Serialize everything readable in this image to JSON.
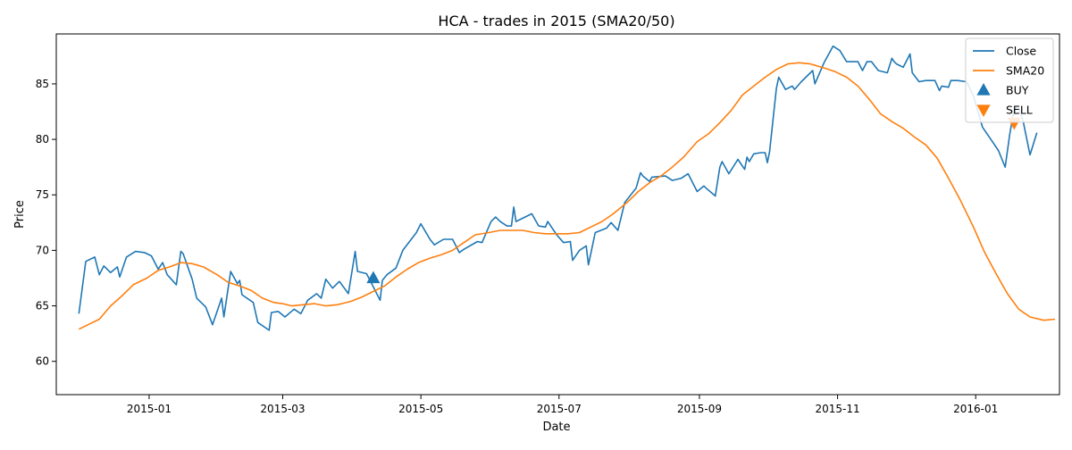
{
  "chart_data": {
    "type": "line",
    "title": "HCA - trades in 2015 (SMA20/50)",
    "xlabel": "Date",
    "ylabel": "Price",
    "xlim": [
      "2014-11-21",
      "2016-02-07"
    ],
    "ylim": [
      57.0,
      89.5
    ],
    "x_ticks": [
      {
        "date": "2015-01-01",
        "label": "2015-01"
      },
      {
        "date": "2015-03-01",
        "label": "2015-03"
      },
      {
        "date": "2015-05-01",
        "label": "2015-05"
      },
      {
        "date": "2015-07-01",
        "label": "2015-07"
      },
      {
        "date": "2015-09-01",
        "label": "2015-09"
      },
      {
        "date": "2015-11-01",
        "label": "2015-11"
      },
      {
        "date": "2016-01-01",
        "label": "2016-01"
      }
    ],
    "y_ticks": [
      60,
      65,
      70,
      75,
      80,
      85
    ],
    "grid": false,
    "legend_position": "top-right",
    "series": [
      {
        "name": "Close",
        "color": "#1f77b4",
        "points": [
          [
            "2014-12-01",
            64.3
          ],
          [
            "2014-12-04",
            69.0
          ],
          [
            "2014-12-08",
            69.4
          ],
          [
            "2014-12-10",
            67.8
          ],
          [
            "2014-12-12",
            68.6
          ],
          [
            "2014-12-15",
            68.0
          ],
          [
            "2014-12-18",
            68.5
          ],
          [
            "2014-12-19",
            67.6
          ],
          [
            "2014-12-22",
            69.4
          ],
          [
            "2014-12-26",
            69.9
          ],
          [
            "2014-12-30",
            69.8
          ],
          [
            "2015-01-02",
            69.5
          ],
          [
            "2015-01-05",
            68.3
          ],
          [
            "2015-01-07",
            68.9
          ],
          [
            "2015-01-09",
            67.8
          ],
          [
            "2015-01-13",
            66.9
          ],
          [
            "2015-01-15",
            69.9
          ],
          [
            "2015-01-16",
            69.7
          ],
          [
            "2015-01-20",
            67.4
          ],
          [
            "2015-01-22",
            65.7
          ],
          [
            "2015-01-26",
            64.9
          ],
          [
            "2015-01-29",
            63.3
          ],
          [
            "2015-02-02",
            65.7
          ],
          [
            "2015-02-03",
            64.0
          ],
          [
            "2015-02-06",
            68.1
          ],
          [
            "2015-02-09",
            67.0
          ],
          [
            "2015-02-10",
            67.3
          ],
          [
            "2015-02-11",
            66.0
          ],
          [
            "2015-02-16",
            65.3
          ],
          [
            "2015-02-18",
            63.5
          ],
          [
            "2015-02-23",
            62.8
          ],
          [
            "2015-02-24",
            64.4
          ],
          [
            "2015-02-27",
            64.5
          ],
          [
            "2015-03-02",
            64.0
          ],
          [
            "2015-03-06",
            64.7
          ],
          [
            "2015-03-09",
            64.3
          ],
          [
            "2015-03-12",
            65.5
          ],
          [
            "2015-03-16",
            66.1
          ],
          [
            "2015-03-18",
            65.7
          ],
          [
            "2015-03-20",
            67.4
          ],
          [
            "2015-03-23",
            66.6
          ],
          [
            "2015-03-26",
            67.2
          ],
          [
            "2015-03-30",
            66.1
          ],
          [
            "2015-04-02",
            69.9
          ],
          [
            "2015-04-03",
            68.1
          ],
          [
            "2015-04-07",
            67.9
          ],
          [
            "2015-04-09",
            67.1
          ],
          [
            "2015-04-13",
            65.5
          ],
          [
            "2015-04-14",
            67.3
          ],
          [
            "2015-04-16",
            67.8
          ],
          [
            "2015-04-20",
            68.4
          ],
          [
            "2015-04-23",
            70.0
          ],
          [
            "2015-04-29",
            71.6
          ],
          [
            "2015-05-01",
            72.4
          ],
          [
            "2015-05-05",
            71.0
          ],
          [
            "2015-05-07",
            70.5
          ],
          [
            "2015-05-11",
            71.0
          ],
          [
            "2015-05-15",
            71.0
          ],
          [
            "2015-05-18",
            69.8
          ],
          [
            "2015-05-20",
            70.1
          ],
          [
            "2015-05-26",
            70.8
          ],
          [
            "2015-05-28",
            70.7
          ],
          [
            "2015-06-01",
            72.6
          ],
          [
            "2015-06-03",
            73.0
          ],
          [
            "2015-06-05",
            72.6
          ],
          [
            "2015-06-08",
            72.2
          ],
          [
            "2015-06-10",
            72.2
          ],
          [
            "2015-06-11",
            73.9
          ],
          [
            "2015-06-12",
            72.6
          ],
          [
            "2015-06-16",
            73.0
          ],
          [
            "2015-06-19",
            73.3
          ],
          [
            "2015-06-22",
            72.2
          ],
          [
            "2015-06-25",
            72.1
          ],
          [
            "2015-06-26",
            72.6
          ],
          [
            "2015-06-30",
            71.4
          ],
          [
            "2015-07-03",
            70.7
          ],
          [
            "2015-07-06",
            70.8
          ],
          [
            "2015-07-07",
            69.1
          ],
          [
            "2015-07-10",
            70.0
          ],
          [
            "2015-07-13",
            70.4
          ],
          [
            "2015-07-14",
            68.7
          ],
          [
            "2015-07-17",
            71.6
          ],
          [
            "2015-07-22",
            72.0
          ],
          [
            "2015-07-24",
            72.5
          ],
          [
            "2015-07-27",
            71.8
          ],
          [
            "2015-07-30",
            74.3
          ],
          [
            "2015-08-04",
            75.6
          ],
          [
            "2015-08-06",
            77.0
          ],
          [
            "2015-08-07",
            76.7
          ],
          [
            "2015-08-10",
            76.2
          ],
          [
            "2015-08-11",
            76.6
          ],
          [
            "2015-08-17",
            76.7
          ],
          [
            "2015-08-20",
            76.3
          ],
          [
            "2015-08-24",
            76.5
          ],
          [
            "2015-08-27",
            76.9
          ],
          [
            "2015-08-31",
            75.3
          ],
          [
            "2015-09-03",
            75.8
          ],
          [
            "2015-09-04",
            75.6
          ],
          [
            "2015-09-08",
            74.9
          ],
          [
            "2015-09-10",
            77.5
          ],
          [
            "2015-09-11",
            78.0
          ],
          [
            "2015-09-14",
            76.9
          ],
          [
            "2015-09-18",
            78.2
          ],
          [
            "2015-09-21",
            77.3
          ],
          [
            "2015-09-22",
            78.4
          ],
          [
            "2015-09-23",
            78.0
          ],
          [
            "2015-09-25",
            78.7
          ],
          [
            "2015-09-28",
            78.8
          ],
          [
            "2015-09-30",
            78.8
          ],
          [
            "2015-10-01",
            77.9
          ],
          [
            "2015-10-02",
            78.9
          ],
          [
            "2015-10-05",
            84.6
          ],
          [
            "2015-10-06",
            85.6
          ],
          [
            "2015-10-09",
            84.5
          ],
          [
            "2015-10-12",
            84.8
          ],
          [
            "2015-10-13",
            84.5
          ],
          [
            "2015-10-16",
            85.2
          ],
          [
            "2015-10-21",
            86.2
          ],
          [
            "2015-10-22",
            85.0
          ],
          [
            "2015-10-26",
            86.9
          ],
          [
            "2015-10-30",
            88.4
          ],
          [
            "2015-11-02",
            88.0
          ],
          [
            "2015-11-05",
            87.0
          ],
          [
            "2015-11-10",
            87.0
          ],
          [
            "2015-11-12",
            86.2
          ],
          [
            "2015-11-14",
            87.0
          ],
          [
            "2015-11-16",
            87.0
          ],
          [
            "2015-11-19",
            86.2
          ],
          [
            "2015-11-23",
            86.0
          ],
          [
            "2015-11-25",
            87.3
          ],
          [
            "2015-11-26",
            87.0
          ],
          [
            "2015-11-27",
            86.8
          ],
          [
            "2015-11-30",
            86.5
          ],
          [
            "2015-12-03",
            87.7
          ],
          [
            "2015-12-04",
            86.0
          ],
          [
            "2015-12-07",
            85.2
          ],
          [
            "2015-12-10",
            85.3
          ],
          [
            "2015-12-14",
            85.3
          ],
          [
            "2015-12-16",
            84.4
          ],
          [
            "2015-12-17",
            84.8
          ],
          [
            "2015-12-20",
            84.7
          ],
          [
            "2015-12-21",
            85.3
          ],
          [
            "2015-12-24",
            85.3
          ],
          [
            "2015-12-28",
            85.2
          ],
          [
            "2015-12-31",
            83.9
          ],
          [
            "2016-01-04",
            81.1
          ],
          [
            "2016-01-08",
            79.9
          ],
          [
            "2016-01-11",
            79.0
          ],
          [
            "2016-01-14",
            77.5
          ],
          [
            "2016-01-16",
            80.4
          ],
          [
            "2016-01-18",
            82.8
          ],
          [
            "2016-01-20",
            82.9
          ],
          [
            "2016-01-22",
            81.6
          ],
          [
            "2016-01-25",
            78.6
          ],
          [
            "2016-01-28",
            80.6
          ]
        ]
      },
      {
        "name": "SMA20",
        "color": "#ff7f0e",
        "points": [
          [
            "2014-12-01",
            62.9
          ],
          [
            "2014-12-05",
            63.3
          ],
          [
            "2014-12-10",
            63.8
          ],
          [
            "2014-12-15",
            65.0
          ],
          [
            "2014-12-20",
            65.9
          ],
          [
            "2014-12-25",
            66.9
          ],
          [
            "2014-12-31",
            67.5
          ],
          [
            "2015-01-05",
            68.2
          ],
          [
            "2015-01-10",
            68.5
          ],
          [
            "2015-01-15",
            68.9
          ],
          [
            "2015-01-20",
            68.8
          ],
          [
            "2015-01-25",
            68.5
          ],
          [
            "2015-01-31",
            67.8
          ],
          [
            "2015-02-05",
            67.1
          ],
          [
            "2015-02-10",
            66.8
          ],
          [
            "2015-02-15",
            66.4
          ],
          [
            "2015-02-20",
            65.7
          ],
          [
            "2015-02-25",
            65.3
          ],
          [
            "2015-03-01",
            65.2
          ],
          [
            "2015-03-05",
            65.0
          ],
          [
            "2015-03-10",
            65.1
          ],
          [
            "2015-03-15",
            65.2
          ],
          [
            "2015-03-20",
            65.0
          ],
          [
            "2015-03-25",
            65.1
          ],
          [
            "2015-03-31",
            65.4
          ],
          [
            "2015-04-05",
            65.8
          ],
          [
            "2015-04-10",
            66.3
          ],
          [
            "2015-04-15",
            66.8
          ],
          [
            "2015-04-20",
            67.6
          ],
          [
            "2015-04-25",
            68.3
          ],
          [
            "2015-04-30",
            68.9
          ],
          [
            "2015-05-05",
            69.3
          ],
          [
            "2015-05-10",
            69.6
          ],
          [
            "2015-05-15",
            70.0
          ],
          [
            "2015-05-20",
            70.7
          ],
          [
            "2015-05-25",
            71.4
          ],
          [
            "2015-05-31",
            71.6
          ],
          [
            "2015-06-05",
            71.8
          ],
          [
            "2015-06-10",
            71.8
          ],
          [
            "2015-06-15",
            71.8
          ],
          [
            "2015-06-20",
            71.6
          ],
          [
            "2015-06-25",
            71.5
          ],
          [
            "2015-06-30",
            71.5
          ],
          [
            "2015-07-05",
            71.5
          ],
          [
            "2015-07-10",
            71.6
          ],
          [
            "2015-07-15",
            72.1
          ],
          [
            "2015-07-20",
            72.6
          ],
          [
            "2015-07-25",
            73.3
          ],
          [
            "2015-07-31",
            74.3
          ],
          [
            "2015-08-05",
            75.3
          ],
          [
            "2015-08-10",
            76.1
          ],
          [
            "2015-08-15",
            76.7
          ],
          [
            "2015-08-20",
            77.5
          ],
          [
            "2015-08-25",
            78.4
          ],
          [
            "2015-08-31",
            79.8
          ],
          [
            "2015-09-05",
            80.5
          ],
          [
            "2015-09-10",
            81.5
          ],
          [
            "2015-09-15",
            82.6
          ],
          [
            "2015-09-20",
            84.0
          ],
          [
            "2015-09-25",
            84.8
          ],
          [
            "2015-09-30",
            85.6
          ],
          [
            "2015-10-05",
            86.3
          ],
          [
            "2015-10-10",
            86.8
          ],
          [
            "2015-10-15",
            86.9
          ],
          [
            "2015-10-20",
            86.8
          ],
          [
            "2015-10-25",
            86.5
          ],
          [
            "2015-10-31",
            86.1
          ],
          [
            "2015-11-05",
            85.6
          ],
          [
            "2015-11-10",
            84.8
          ],
          [
            "2015-11-15",
            83.6
          ],
          [
            "2015-11-20",
            82.3
          ],
          [
            "2015-11-25",
            81.6
          ],
          [
            "2015-11-30",
            81.0
          ],
          [
            "2015-12-05",
            80.2
          ],
          [
            "2015-12-10",
            79.5
          ],
          [
            "2015-12-15",
            78.3
          ],
          [
            "2015-12-20",
            76.5
          ],
          [
            "2015-12-25",
            74.6
          ],
          [
            "2015-12-31",
            72.1
          ],
          [
            "2016-01-05",
            69.8
          ],
          [
            "2016-01-10",
            67.9
          ],
          [
            "2016-01-15",
            66.1
          ],
          [
            "2016-01-20",
            64.7
          ],
          [
            "2016-01-25",
            64.0
          ],
          [
            "2016-01-31",
            63.7
          ],
          [
            "2016-02-05",
            63.8
          ]
        ]
      }
    ],
    "annotations": [
      {
        "label": "BUY",
        "marker": "triangle-up",
        "color": "#1f77b4",
        "points": [
          [
            "2015-04-10",
            67.5
          ]
        ]
      },
      {
        "label": "SELL",
        "marker": "triangle-down",
        "color": "#ff7f0e",
        "points": [
          [
            "2016-01-18",
            81.5
          ]
        ]
      }
    ]
  }
}
